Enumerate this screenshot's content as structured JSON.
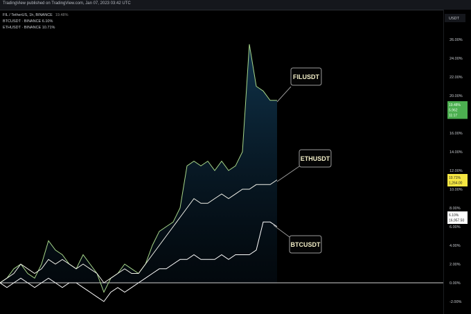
{
  "header": {
    "published_text": "TradingView published on TradingView.com, Jan 07, 2023 03:42 UTC"
  },
  "legend": {
    "main": "FIL / TetherUS, 1h, BINANCE",
    "main_value": "19.48%",
    "items": [
      {
        "label": "BTCUSDT · BINANCE",
        "value": "6.10%"
      },
      {
        "label": "ETHUSDT · BINANCE",
        "value": "10.71%"
      }
    ]
  },
  "axis_currency": "USDT",
  "badges": {
    "fil": {
      "lines": [
        "19.48%",
        "5.962",
        "11:17"
      ],
      "color": "#4caf50"
    },
    "eth": {
      "lines": [
        "10.71%",
        "1,264.00"
      ],
      "color": "#f5e642"
    },
    "btc": {
      "lines": [
        "6.10%",
        "16,957.50"
      ],
      "color": "#ffffff"
    }
  },
  "chart_data": {
    "type": "line",
    "ylabel": "",
    "ylim": [
      -3,
      27
    ],
    "y_ticks": [
      "26.00%",
      "24.00%",
      "22.00%",
      "20.00%",
      "16.00%",
      "14.00%",
      "12.00%",
      "10.00%",
      "8.00%",
      "6.00%",
      "4.00%",
      "2.00%",
      "0.00%",
      "-2.00%"
    ],
    "y_tick_values": [
      26,
      24,
      22,
      20,
      16,
      14,
      12,
      10,
      8,
      6,
      4,
      2,
      0,
      -2
    ],
    "baseline": 0,
    "grid": false,
    "series": [
      {
        "name": "FILUSDT",
        "color": "#a8d88a",
        "fill": true,
        "values": [
          0,
          0.5,
          1.5,
          2,
          1,
          0.5,
          2,
          4.5,
          3.5,
          3,
          2,
          1.5,
          3,
          2,
          1,
          -1,
          0.5,
          1,
          2,
          1.5,
          1,
          2,
          4,
          5.5,
          6,
          6.5,
          8,
          12.5,
          13,
          12.5,
          13,
          12,
          13,
          12,
          12.5,
          14,
          25.5,
          21,
          20.5,
          19.5,
          19.5
        ]
      },
      {
        "name": "ETHUSDT",
        "color": "#f2f2ea",
        "values": [
          0,
          0.5,
          1,
          2,
          1.5,
          1,
          1.5,
          2.5,
          2,
          2.5,
          2,
          1.5,
          2,
          1.5,
          1,
          0,
          0.5,
          1,
          1.5,
          1,
          1,
          2,
          3,
          4,
          5,
          6,
          7,
          8,
          9,
          8.5,
          8.5,
          9,
          9.5,
          9,
          9.5,
          10,
          10,
          10.5,
          10.5,
          10.5,
          11
        ]
      },
      {
        "name": "BTCUSDT",
        "color": "#ffffff",
        "values": [
          0,
          -0.5,
          0,
          0.5,
          0,
          -0.5,
          0,
          0.5,
          0,
          -0.5,
          0,
          0,
          -0.5,
          -1,
          -1.5,
          -2,
          -1,
          -0.5,
          -1,
          -0.5,
          0,
          0.5,
          1,
          1.5,
          1.5,
          2,
          2.5,
          2.5,
          3,
          2.5,
          2.5,
          2.5,
          3,
          2.5,
          3,
          3,
          3,
          3.5,
          6.5,
          6.5,
          6
        ]
      }
    ]
  }
}
